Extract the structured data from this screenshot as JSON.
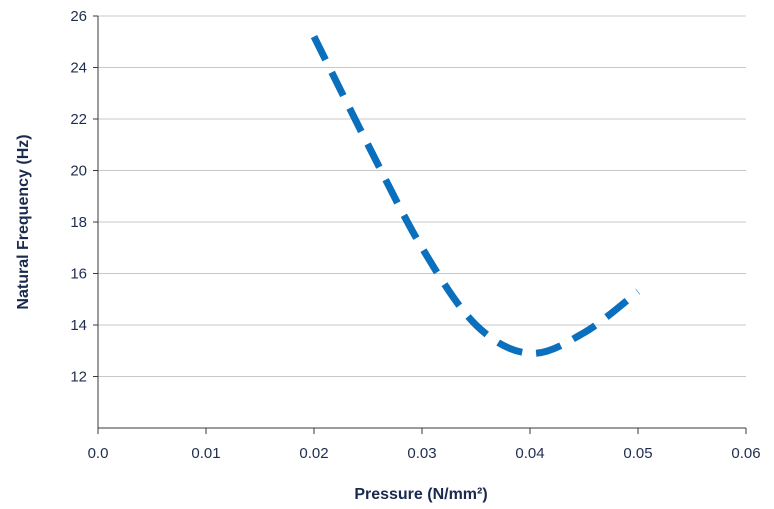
{
  "chart_data": {
    "type": "line",
    "title": "",
    "xlabel": "Pressure (N/mm²)",
    "ylabel": "Natural Frequency (Hz)",
    "xlim": [
      0,
      0.06
    ],
    "ylim": [
      10,
      26
    ],
    "x_ticks": [
      0,
      0.01,
      0.02,
      0.03,
      0.04,
      0.05,
      0.06
    ],
    "x_tick_labels": [
      "0.0",
      "0.01",
      "0.02",
      "0.03",
      "0.04",
      "0.05",
      "0.06"
    ],
    "y_ticks": [
      12,
      14,
      16,
      18,
      20,
      22,
      24,
      26
    ],
    "y_tick_labels": [
      "12",
      "14",
      "16",
      "18",
      "20",
      "22",
      "24",
      "26"
    ],
    "grid": "horizontal",
    "legend": "none",
    "series": [
      {
        "color": "#0a6fbd",
        "style": "dashed",
        "x": [
          0.02,
          0.025,
          0.03,
          0.035,
          0.04,
          0.045,
          0.05
        ],
        "y": [
          25.2,
          21.0,
          17.0,
          14.0,
          12.9,
          13.7,
          15.3
        ]
      }
    ]
  }
}
